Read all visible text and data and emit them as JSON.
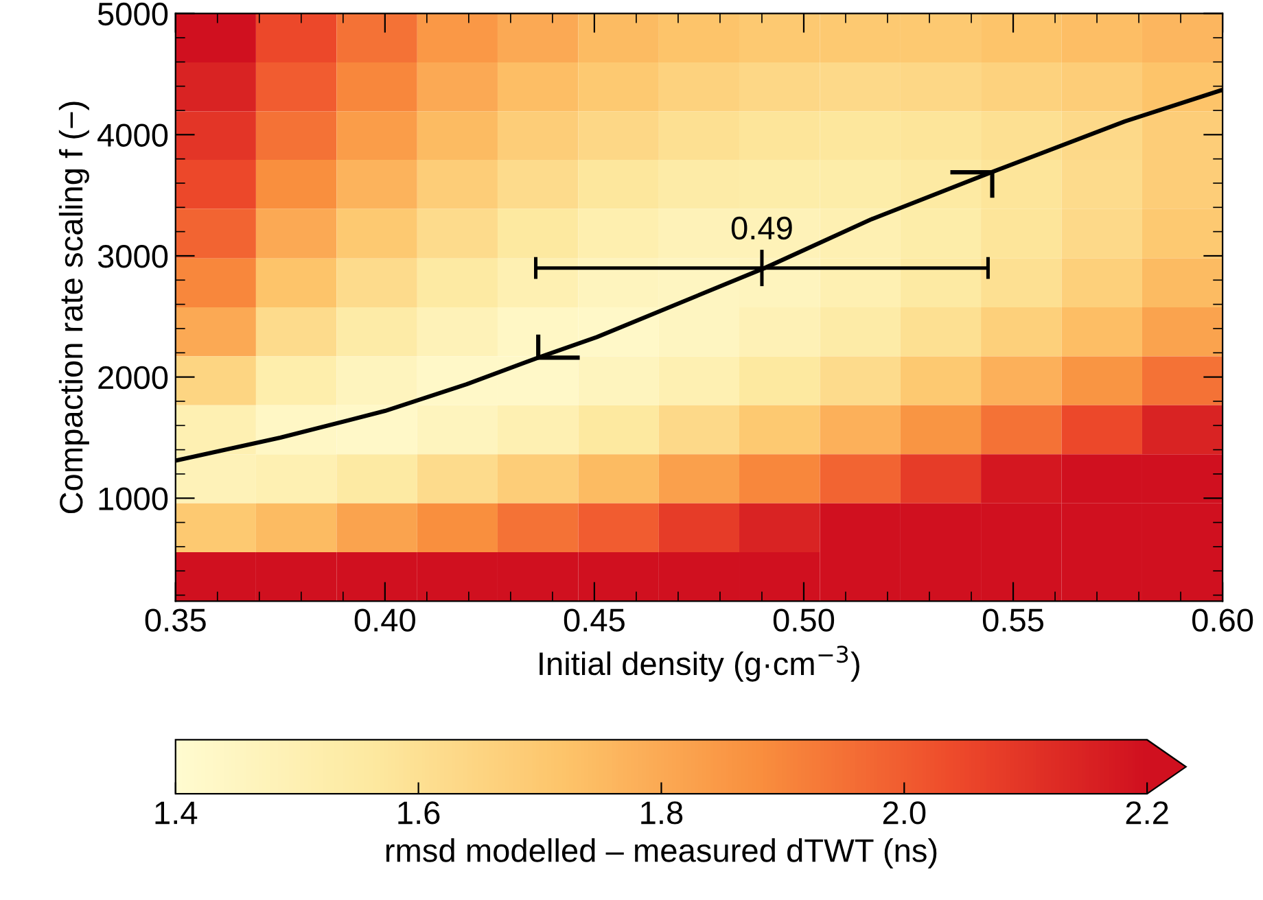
{
  "chart_data": {
    "type": "heatmap",
    "xlabel": "Initial density (g·cm$^{−3}$)",
    "ylabel": "Compaction rate scaling f (−)",
    "clabel": "rmsd modelled – measured dTWT (ns)",
    "x": [
      0.3596,
      0.3788,
      0.3981,
      0.4173,
      0.4365,
      0.4558,
      0.475,
      0.4942,
      0.5135,
      0.5327,
      0.5519,
      0.5712,
      0.5904
    ],
    "y": [
      4798,
      4394,
      3990,
      3596,
      3181,
      2777,
      2373,
      1969,
      1565,
      1160,
      756,
      352
    ],
    "cells": [
      [
        2.2,
        2.05,
        1.95,
        1.85,
        1.8,
        1.75,
        1.72,
        1.7,
        1.7,
        1.7,
        1.72,
        1.74,
        1.76
      ],
      [
        2.15,
        2.0,
        1.9,
        1.8,
        1.74,
        1.7,
        1.66,
        1.64,
        1.63,
        1.64,
        1.66,
        1.68,
        1.72
      ],
      [
        2.1,
        1.95,
        1.84,
        1.75,
        1.68,
        1.64,
        1.6,
        1.58,
        1.57,
        1.58,
        1.6,
        1.63,
        1.68
      ],
      [
        2.05,
        1.88,
        1.77,
        1.68,
        1.62,
        1.57,
        1.54,
        1.53,
        1.53,
        1.55,
        1.58,
        1.62,
        1.68
      ],
      [
        1.98,
        1.8,
        1.7,
        1.62,
        1.56,
        1.51,
        1.48,
        1.48,
        1.5,
        1.53,
        1.58,
        1.63,
        1.7
      ],
      [
        1.9,
        1.72,
        1.62,
        1.55,
        1.5,
        1.46,
        1.45,
        1.46,
        1.5,
        1.55,
        1.6,
        1.67,
        1.75
      ],
      [
        1.8,
        1.62,
        1.54,
        1.48,
        1.44,
        1.43,
        1.45,
        1.49,
        1.54,
        1.6,
        1.67,
        1.74,
        1.82
      ],
      [
        1.65,
        1.52,
        1.46,
        1.43,
        1.43,
        1.46,
        1.5,
        1.56,
        1.62,
        1.7,
        1.78,
        1.86,
        1.95
      ],
      [
        1.5,
        1.44,
        1.43,
        1.46,
        1.5,
        1.56,
        1.63,
        1.7,
        1.78,
        1.86,
        1.95,
        2.05,
        2.15
      ],
      [
        1.48,
        1.5,
        1.55,
        1.62,
        1.68,
        1.75,
        1.83,
        1.9,
        1.98,
        2.08,
        2.18,
        2.2,
        2.2
      ],
      [
        1.7,
        1.75,
        1.82,
        1.88,
        1.95,
        2.0,
        2.08,
        2.15,
        2.2,
        2.2,
        2.2,
        2.2,
        2.2
      ],
      [
        2.2,
        2.2,
        2.2,
        2.2,
        2.2,
        2.2,
        2.2,
        2.2,
        2.2,
        2.2,
        2.2,
        2.2,
        2.2
      ]
    ],
    "colors": [
      "#fffbd0",
      "#fde9a0",
      "#fdc46a",
      "#f98f3e",
      "#ee4b2b",
      "#d0101f"
    ],
    "clim": [
      1.4,
      2.2
    ],
    "cticks": [
      {
        "value": 1.4,
        "label": "1.4"
      },
      {
        "value": 1.6,
        "label": "1.6"
      },
      {
        "value": 1.8,
        "label": "1.8"
      },
      {
        "value": 2.0,
        "label": "2.0"
      },
      {
        "value": 2.2,
        "label": "2.2"
      }
    ],
    "xlim": [
      0.35,
      0.6
    ],
    "ylim": [
      150,
      5000
    ],
    "xticks": [
      {
        "value": 0.35,
        "label": "0.35"
      },
      {
        "value": 0.4,
        "label": "0.40"
      },
      {
        "value": 0.45,
        "label": "0.45"
      },
      {
        "value": 0.5,
        "label": "0.50"
      },
      {
        "value": 0.55,
        "label": "0.55"
      },
      {
        "value": 0.6,
        "label": "0.60"
      }
    ],
    "yticks": [
      1000,
      2000,
      3000,
      4000,
      5000
    ],
    "series": [
      {
        "type": "line",
        "color": "#000000",
        "x": [
          0.35,
          0.375,
          0.4,
          0.4195,
          0.4366,
          0.4506,
          0.4907,
          0.516,
          0.5448,
          0.5767,
          0.6
        ],
        "values": [
          1310,
          1500,
          1720,
          1940,
          2160,
          2330,
          2900,
          3300,
          3690,
          4110,
          4370
        ]
      },
      {
        "type": "line",
        "color": "#000000",
        "x": [
          0.4366,
          0.4366,
          0.4465
        ],
        "values": [
          2350,
          2160,
          2160
        ]
      },
      {
        "type": "line",
        "color": "#000000",
        "x": [
          0.535,
          0.545,
          0.545
        ],
        "values": [
          3690,
          3690,
          3480
        ]
      },
      {
        "type": "line",
        "color": "#000000",
        "x": [
          0.436,
          0.49,
          0.544
        ],
        "values": [
          2900,
          2900,
          2900
        ],
        "errors": [
          90,
          150,
          90
        ]
      }
    ],
    "annotations": [
      "0.49"
    ]
  }
}
